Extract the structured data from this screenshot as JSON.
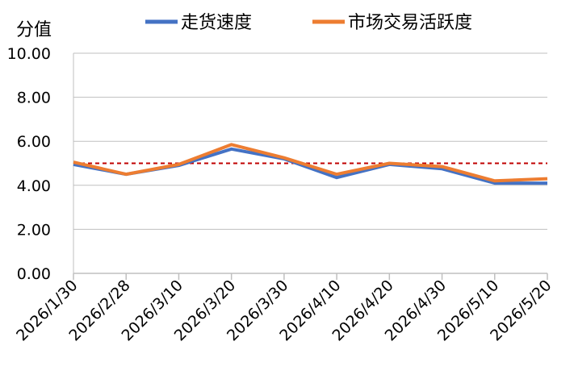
{
  "chart_data": {
    "type": "line",
    "title": "",
    "ylabel": "分值",
    "xlabel": "",
    "ylim": [
      0,
      10
    ],
    "y_ticks": [
      "0.00",
      "2.00",
      "4.00",
      "6.00",
      "8.00",
      "10.00"
    ],
    "categories": [
      "2026/1/30",
      "2026/2/28",
      "2026/3/10",
      "2026/3/20",
      "2026/3/30",
      "2026/4/10",
      "2026/4/20",
      "2026/4/30",
      "2026/5/10",
      "2026/5/20"
    ],
    "series": [
      {
        "name": "走货速度",
        "color": "#4472C4",
        "values": [
          4.95,
          4.5,
          4.9,
          5.65,
          5.2,
          4.35,
          4.95,
          4.75,
          4.1,
          4.1
        ]
      },
      {
        "name": "市场交易活跃度",
        "color": "#ED7D31",
        "values": [
          5.05,
          4.5,
          4.95,
          5.85,
          5.25,
          4.5,
          5.0,
          4.85,
          4.2,
          4.3
        ]
      }
    ],
    "reference_line": {
      "value": 5,
      "color": "#C00000",
      "style": "dashed"
    },
    "grid": "horizontal",
    "legend": "top",
    "gridline_color": "#BFBFBF",
    "axis_color": "#BFBFBF"
  }
}
